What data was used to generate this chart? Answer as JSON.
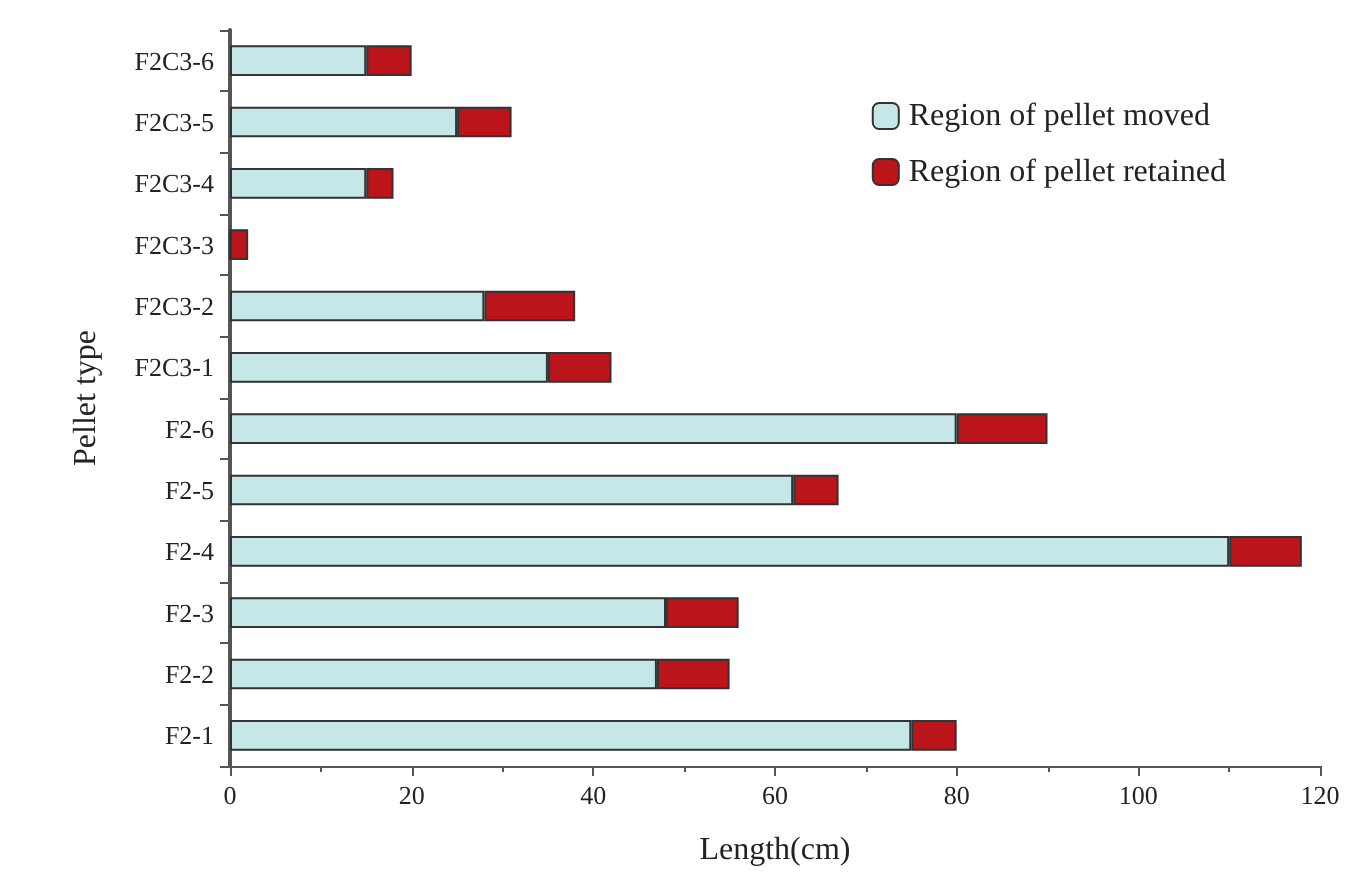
{
  "chart_data": {
    "type": "bar",
    "orientation": "horizontal",
    "stacked": true,
    "xlabel": "Length(cm)",
    "ylabel": "Pellet type",
    "categories": [
      "F2C3-6",
      "F2C3-5",
      "F2C3-4",
      "F2C3-3",
      "F2C3-2",
      "F2C3-1",
      "F2-6",
      "F2-5",
      "F2-4",
      "F2-3",
      "F2-2",
      "F2-1"
    ],
    "series": [
      {
        "name": "Region of pellet moved",
        "color": "#c5e7e7",
        "values": [
          15,
          25,
          15,
          0,
          28,
          35,
          80,
          62,
          110,
          48,
          47,
          75
        ]
      },
      {
        "name": "Region of pellet retained",
        "color": "#bb141a",
        "values": [
          5,
          6,
          3,
          2,
          10,
          7,
          10,
          5,
          8,
          8,
          8,
          5
        ]
      }
    ],
    "xlim": [
      0,
      120
    ],
    "xticks": [
      0,
      20,
      40,
      60,
      80,
      100,
      120
    ],
    "grid": false,
    "legend": "top right"
  }
}
